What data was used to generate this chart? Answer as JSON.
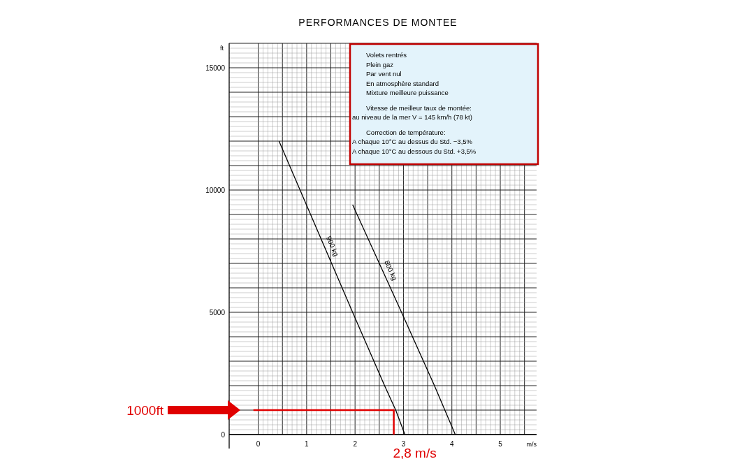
{
  "chart_data": {
    "type": "line",
    "title": "PERFORMANCES DE MONTEE",
    "xlabel": "m/s",
    "ylabel": "ft",
    "xlim": [
      -0.6,
      5.75
    ],
    "ylim": [
      0,
      16000
    ],
    "xticks": [
      0,
      {
        "value": 0.5,
        "label": null
      },
      1,
      {
        "value": 1.5,
        "label": null
      },
      2,
      {
        "value": 2.5,
        "label": null
      },
      3,
      {
        "value": 3.5,
        "label": null
      },
      4,
      {
        "value": 4.5,
        "label": null
      },
      5,
      {
        "value": 5.5,
        "label": null
      }
    ],
    "yticks": [
      0,
      {
        "value": 1000,
        "label": null
      },
      {
        "value": 2000,
        "label": null
      },
      {
        "value": 3000,
        "label": null
      },
      {
        "value": 4000,
        "label": null
      },
      5000,
      {
        "value": 6000,
        "label": null
      },
      {
        "value": 7000,
        "label": null
      },
      {
        "value": 8000,
        "label": null
      },
      {
        "value": 9000,
        "label": null
      },
      10000,
      {
        "value": 11000,
        "label": null
      },
      {
        "value": 12000,
        "label": null
      },
      {
        "value": 13000,
        "label": null
      },
      {
        "value": 14000,
        "label": null
      },
      15000,
      {
        "value": 16000,
        "label": null
      }
    ],
    "grid": true,
    "marker": "none",
    "line_style": "solid",
    "series": [
      {
        "name": "900 kg",
        "color": "#000000",
        "x": [
          0.43,
          1.95,
          2.61,
          2.84,
          3.03
        ],
        "values": [
          12000,
          5000,
          2000,
          1000,
          0
        ]
      },
      {
        "name": "800 kg",
        "color": "#000000",
        "x": [
          1.95,
          2.96,
          3.64,
          4.07
        ],
        "values": [
          9400,
          5000,
          2000,
          0
        ]
      },
      {
        "color": "#e00000",
        "x": [
          -0.1,
          2.8,
          2.8
        ],
        "values": [
          1000,
          1000,
          0
        ]
      }
    ],
    "annotations": [
      "Volets rentrés",
      "Plein gaz",
      "Par vent nul",
      "En atmosphère standard",
      "Mixture meilleure puissance",
      "Vitesse de meilleur taux de montée:",
      "au niveau de la mer V = 145 km/h (78 kt)",
      "Correction de température:",
      "A chaque 10°C au dessus du Std. −3,5%",
      "A chaque 10°C au dessous du Std. +3,5%",
      "1000ft",
      "2,8 m/s"
    ]
  }
}
